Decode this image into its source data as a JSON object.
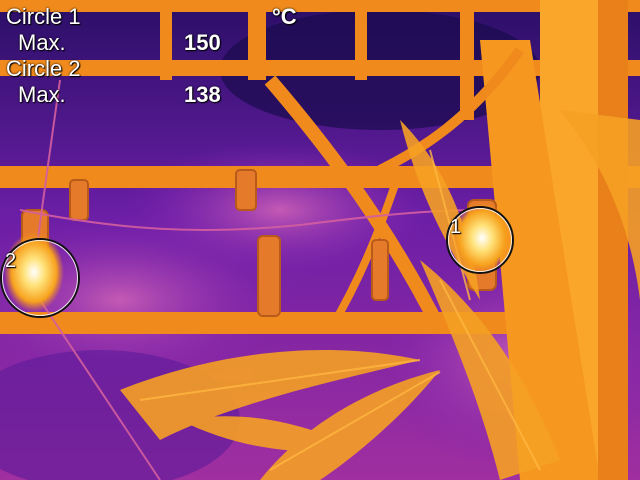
{
  "readout": {
    "circle1_label": "Circle 1",
    "circle1_max_label": "Max.",
    "circle1_max_value": "150",
    "circle2_label": "Circle 2",
    "circle2_max_label": "Max.",
    "circle2_max_value": "138",
    "unit": "°C"
  },
  "spots": {
    "spot1_number": "1",
    "spot2_number": "2"
  },
  "palette": {
    "cold": "#1a0f5c",
    "cool": "#7a1fb0",
    "mid": "#d02a86",
    "warm": "#f28a1c",
    "hot": "#ffd25a",
    "hottest": "#ffffff"
  }
}
